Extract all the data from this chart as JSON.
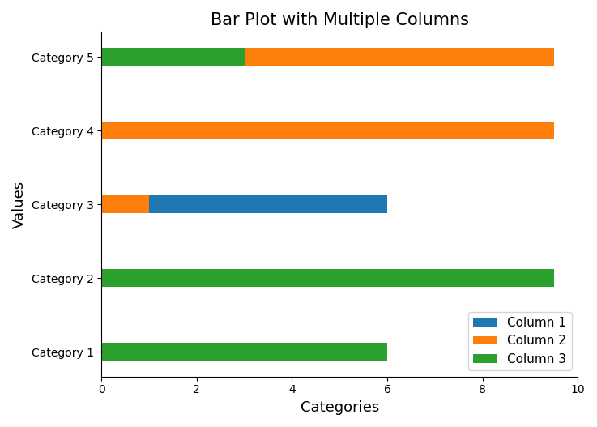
{
  "categories": [
    "Category 1",
    "Category 2",
    "Category 3",
    "Category 4",
    "Category 5"
  ],
  "columns": [
    "Column 1",
    "Column 2",
    "Column 3"
  ],
  "values": {
    "Column 1": [
      0,
      0,
      5,
      0,
      0
    ],
    "Column 2": [
      0,
      0,
      1,
      9.5,
      6.5
    ],
    "Column 3": [
      6,
      9.5,
      0,
      0,
      3
    ]
  },
  "colors": {
    "Column 1": "#1f77b4",
    "Column 2": "#ff7f0e",
    "Column 3": "#2ca02c"
  },
  "title": "Bar Plot with Multiple Columns",
  "xlabel": "Categories",
  "ylabel": "Values",
  "xlim": [
    0,
    10
  ],
  "bar_height": 0.25,
  "title_fontsize": 15,
  "label_fontsize": 13
}
